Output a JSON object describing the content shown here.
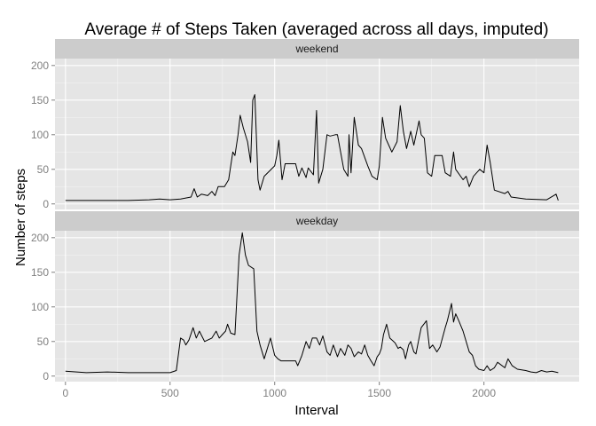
{
  "chart_data": {
    "type": "line",
    "title": "Average # of Steps Taken (averaged across all days, imputed)",
    "xlabel": "Interval",
    "ylabel": "Number of steps",
    "xlim": [
      -50,
      2455
    ],
    "ylim": [
      -8,
      210
    ],
    "x_ticks": [
      0,
      500,
      1000,
      1500,
      2000
    ],
    "y_ticks": [
      0,
      50,
      100,
      150,
      200
    ],
    "grid": true,
    "line_color": "#000000",
    "panels": [
      {
        "label": "weekend",
        "points": [
          [
            0,
            5
          ],
          [
            100,
            5
          ],
          [
            200,
            5
          ],
          [
            300,
            5
          ],
          [
            400,
            6
          ],
          [
            450,
            7
          ],
          [
            500,
            6
          ],
          [
            550,
            7
          ],
          [
            600,
            10
          ],
          [
            615,
            22
          ],
          [
            630,
            10
          ],
          [
            650,
            14
          ],
          [
            680,
            12
          ],
          [
            700,
            18
          ],
          [
            715,
            12
          ],
          [
            730,
            25
          ],
          [
            760,
            25
          ],
          [
            780,
            35
          ],
          [
            800,
            75
          ],
          [
            810,
            70
          ],
          [
            825,
            100
          ],
          [
            835,
            128
          ],
          [
            850,
            110
          ],
          [
            870,
            90
          ],
          [
            885,
            60
          ],
          [
            895,
            150
          ],
          [
            905,
            158
          ],
          [
            920,
            35
          ],
          [
            930,
            20
          ],
          [
            950,
            40
          ],
          [
            1000,
            55
          ],
          [
            1010,
            70
          ],
          [
            1020,
            92
          ],
          [
            1035,
            35
          ],
          [
            1050,
            58
          ],
          [
            1100,
            58
          ],
          [
            1115,
            40
          ],
          [
            1130,
            52
          ],
          [
            1150,
            38
          ],
          [
            1160,
            52
          ],
          [
            1185,
            42
          ],
          [
            1200,
            135
          ],
          [
            1210,
            30
          ],
          [
            1230,
            50
          ],
          [
            1250,
            100
          ],
          [
            1265,
            98
          ],
          [
            1290,
            100
          ],
          [
            1300,
            100
          ],
          [
            1330,
            50
          ],
          [
            1350,
            40
          ],
          [
            1355,
            100
          ],
          [
            1365,
            45
          ],
          [
            1380,
            125
          ],
          [
            1400,
            85
          ],
          [
            1415,
            80
          ],
          [
            1445,
            55
          ],
          [
            1465,
            40
          ],
          [
            1490,
            35
          ],
          [
            1500,
            55
          ],
          [
            1515,
            125
          ],
          [
            1530,
            95
          ],
          [
            1545,
            85
          ],
          [
            1560,
            75
          ],
          [
            1585,
            90
          ],
          [
            1600,
            142
          ],
          [
            1615,
            105
          ],
          [
            1630,
            80
          ],
          [
            1650,
            105
          ],
          [
            1665,
            85
          ],
          [
            1690,
            120
          ],
          [
            1700,
            100
          ],
          [
            1715,
            95
          ],
          [
            1730,
            45
          ],
          [
            1750,
            40
          ],
          [
            1765,
            70
          ],
          [
            1800,
            70
          ],
          [
            1815,
            45
          ],
          [
            1840,
            40
          ],
          [
            1855,
            75
          ],
          [
            1865,
            50
          ],
          [
            1900,
            35
          ],
          [
            1915,
            40
          ],
          [
            1930,
            25
          ],
          [
            1950,
            40
          ],
          [
            1980,
            50
          ],
          [
            2000,
            45
          ],
          [
            2015,
            85
          ],
          [
            2030,
            60
          ],
          [
            2050,
            20
          ],
          [
            2100,
            15
          ],
          [
            2115,
            18
          ],
          [
            2130,
            10
          ],
          [
            2200,
            7
          ],
          [
            2300,
            6
          ],
          [
            2345,
            14
          ],
          [
            2355,
            5
          ]
        ]
      },
      {
        "label": "weekday",
        "points": [
          [
            0,
            7
          ],
          [
            100,
            5
          ],
          [
            200,
            6
          ],
          [
            300,
            5
          ],
          [
            400,
            5
          ],
          [
            450,
            5
          ],
          [
            500,
            5
          ],
          [
            530,
            8
          ],
          [
            550,
            55
          ],
          [
            565,
            52
          ],
          [
            575,
            45
          ],
          [
            590,
            52
          ],
          [
            610,
            70
          ],
          [
            625,
            55
          ],
          [
            640,
            65
          ],
          [
            665,
            50
          ],
          [
            700,
            55
          ],
          [
            720,
            65
          ],
          [
            735,
            55
          ],
          [
            750,
            60
          ],
          [
            765,
            65
          ],
          [
            775,
            75
          ],
          [
            790,
            62
          ],
          [
            810,
            60
          ],
          [
            830,
            175
          ],
          [
            845,
            207
          ],
          [
            860,
            175
          ],
          [
            875,
            160
          ],
          [
            900,
            155
          ],
          [
            915,
            65
          ],
          [
            930,
            45
          ],
          [
            950,
            25
          ],
          [
            980,
            55
          ],
          [
            1000,
            30
          ],
          [
            1015,
            25
          ],
          [
            1030,
            22
          ],
          [
            1060,
            22
          ],
          [
            1100,
            22
          ],
          [
            1110,
            15
          ],
          [
            1130,
            30
          ],
          [
            1150,
            50
          ],
          [
            1165,
            40
          ],
          [
            1180,
            55
          ],
          [
            1200,
            55
          ],
          [
            1215,
            45
          ],
          [
            1230,
            58
          ],
          [
            1250,
            35
          ],
          [
            1265,
            30
          ],
          [
            1280,
            45
          ],
          [
            1300,
            28
          ],
          [
            1315,
            40
          ],
          [
            1335,
            30
          ],
          [
            1350,
            45
          ],
          [
            1365,
            40
          ],
          [
            1380,
            28
          ],
          [
            1400,
            35
          ],
          [
            1415,
            32
          ],
          [
            1430,
            45
          ],
          [
            1445,
            30
          ],
          [
            1460,
            22
          ],
          [
            1475,
            15
          ],
          [
            1490,
            28
          ],
          [
            1500,
            32
          ],
          [
            1510,
            40
          ],
          [
            1520,
            60
          ],
          [
            1535,
            75
          ],
          [
            1550,
            55
          ],
          [
            1575,
            48
          ],
          [
            1590,
            40
          ],
          [
            1600,
            42
          ],
          [
            1615,
            38
          ],
          [
            1625,
            25
          ],
          [
            1640,
            45
          ],
          [
            1650,
            50
          ],
          [
            1665,
            35
          ],
          [
            1675,
            32
          ],
          [
            1690,
            55
          ],
          [
            1700,
            70
          ],
          [
            1725,
            80
          ],
          [
            1740,
            40
          ],
          [
            1755,
            45
          ],
          [
            1775,
            35
          ],
          [
            1790,
            42
          ],
          [
            1815,
            70
          ],
          [
            1825,
            80
          ],
          [
            1845,
            105
          ],
          [
            1855,
            78
          ],
          [
            1865,
            90
          ],
          [
            1880,
            80
          ],
          [
            1900,
            65
          ],
          [
            1915,
            50
          ],
          [
            1930,
            35
          ],
          [
            1945,
            30
          ],
          [
            1960,
            15
          ],
          [
            1975,
            10
          ],
          [
            2000,
            8
          ],
          [
            2015,
            15
          ],
          [
            2030,
            8
          ],
          [
            2050,
            12
          ],
          [
            2065,
            20
          ],
          [
            2100,
            12
          ],
          [
            2115,
            25
          ],
          [
            2135,
            15
          ],
          [
            2160,
            10
          ],
          [
            2200,
            8
          ],
          [
            2225,
            6
          ],
          [
            2250,
            5
          ],
          [
            2275,
            8
          ],
          [
            2300,
            6
          ],
          [
            2325,
            7
          ],
          [
            2355,
            5
          ]
        ]
      }
    ]
  }
}
